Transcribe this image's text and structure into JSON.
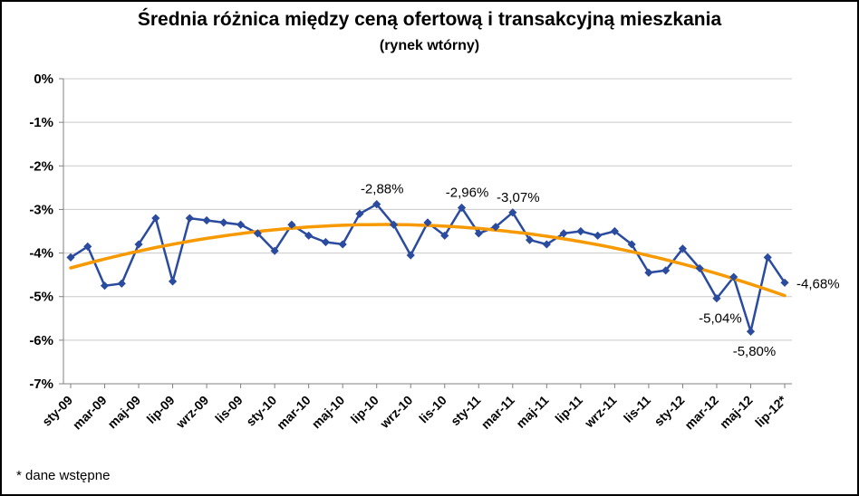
{
  "chart_data": {
    "type": "line",
    "title": "Średnia różnica między ceną ofertową i transakcyjną mieszkania",
    "subtitle": "(rynek wtórny)",
    "footnote": "* dane wstępne",
    "grid": true,
    "legend": false,
    "unit": "percent",
    "ylim": [
      -7,
      0
    ],
    "ytick_step": 1,
    "y_ticklabels": [
      "0%",
      "-1%",
      "-2%",
      "-3%",
      "-4%",
      "-5%",
      "-6%",
      "-7%"
    ],
    "tick_every": 2,
    "x_ticklabels": [
      "sty-09",
      "mar-09",
      "maj-09",
      "lip-09",
      "wrz-09",
      "lis-09",
      "sty-10",
      "mar-10",
      "maj-10",
      "lip-10",
      "wrz-10",
      "lis-10",
      "sty-11",
      "mar-11",
      "maj-11",
      "lip-11",
      "wrz-11",
      "lis-11",
      "sty-12",
      "mar-12",
      "maj-12",
      "lip-12*"
    ],
    "colors": {
      "grid": "#C9C9C9",
      "axis": "#808080",
      "text": "#000000"
    },
    "series": [
      {
        "color": "#2B4B9F",
        "marker": "diamond",
        "values": [
          -4.1,
          -3.85,
          -4.75,
          -4.7,
          -3.8,
          -3.2,
          -4.65,
          -3.2,
          -3.25,
          -3.3,
          -3.35,
          -3.55,
          -3.95,
          -3.35,
          -3.6,
          -3.75,
          -3.8,
          -3.1,
          -2.88,
          -3.35,
          -4.05,
          -3.3,
          -3.6,
          -2.96,
          -3.55,
          -3.4,
          -3.07,
          -3.7,
          -3.8,
          -3.55,
          -3.5,
          -3.6,
          -3.5,
          -3.8,
          -4.45,
          -4.4,
          -3.9,
          -4.35,
          -5.04,
          -4.55,
          -5.8,
          -4.1,
          -4.68
        ]
      }
    ],
    "trendline": {
      "type": "polynomial",
      "degree": 2,
      "color": "#F79900"
    },
    "annotations": [
      {
        "point_index": 18,
        "text": "-2,88%",
        "placement": "above"
      },
      {
        "point_index": 23,
        "text": "-2,96%",
        "placement": "above"
      },
      {
        "point_index": 26,
        "text": "-3,07%",
        "placement": "above"
      },
      {
        "point_index": 38,
        "text": "-5,04%",
        "placement": "below"
      },
      {
        "point_index": 40,
        "text": "-5,80%",
        "placement": "below"
      },
      {
        "point_index": 42,
        "text": "-4,68%",
        "placement": "right"
      }
    ]
  }
}
